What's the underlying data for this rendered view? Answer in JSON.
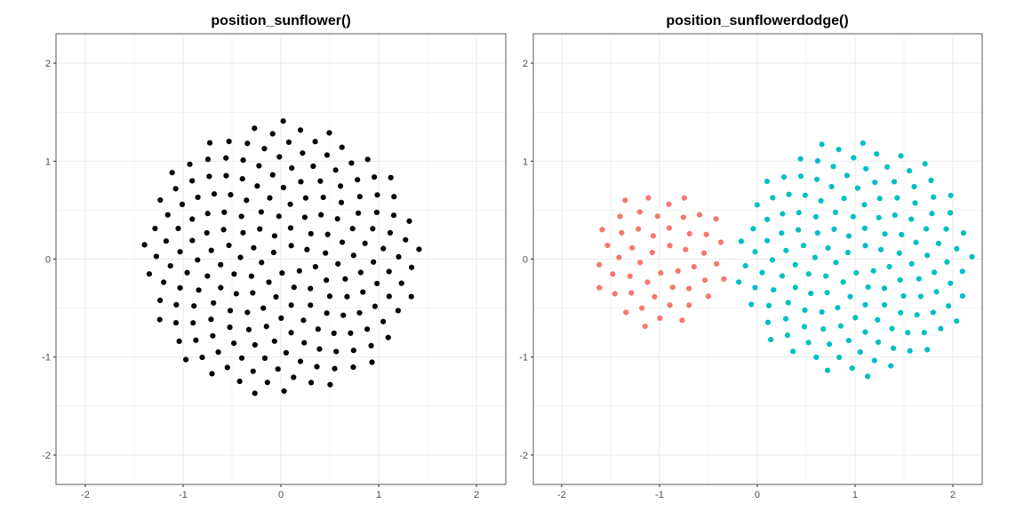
{
  "chart_data": [
    {
      "type": "scatter",
      "title": "position_sunflower()",
      "xlabel": "",
      "ylabel": "",
      "xlim": [
        -2.3,
        2.3
      ],
      "ylim": [
        -2.3,
        2.3
      ],
      "xticks": [
        "-2",
        "-1",
        "0",
        "1",
        "2"
      ],
      "yticks": [
        "-2",
        "-1",
        "0",
        "1",
        "2"
      ],
      "grid": true,
      "legend": "none",
      "series": [
        {
          "n": 200,
          "center": [
            0,
            0
          ],
          "radius": 1.42,
          "color": "#000000"
        }
      ]
    },
    {
      "type": "scatter",
      "title": "position_sunflowerdodge()",
      "xlabel": "",
      "ylabel": "",
      "xlim": [
        -2.29,
        2.3
      ],
      "ylim": [
        -2.3,
        2.3
      ],
      "xticks": [
        "-2",
        "-1",
        "0",
        "1",
        "2"
      ],
      "yticks": [
        "-2",
        "-1",
        "0",
        "1",
        "2"
      ],
      "grid": true,
      "legend": "none",
      "series": [
        {
          "n": 50,
          "center": [
            -1,
            0
          ],
          "radius": 0.71,
          "color": "#F8766D"
        },
        {
          "n": 150,
          "center": [
            1,
            0
          ],
          "radius": 1.22,
          "color": "#00BFC4"
        }
      ]
    }
  ]
}
